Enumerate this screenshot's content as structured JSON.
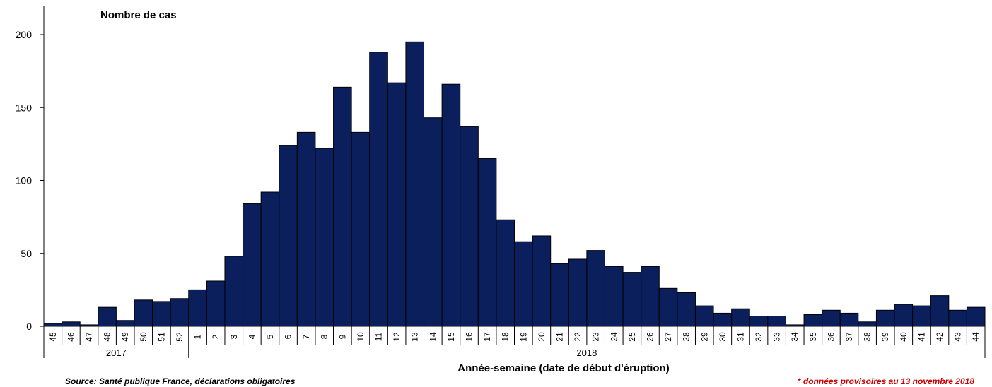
{
  "chart_data": {
    "type": "bar",
    "title": "Nombre de cas",
    "xlabel": "Année-semaine (date de début d'éruption)",
    "ylabel": "",
    "ylim": [
      0,
      200
    ],
    "yticks": [
      0,
      50,
      100,
      150,
      200
    ],
    "grid": false,
    "bar_color": "#0b1f5c",
    "categories": [
      "45",
      "46",
      "47",
      "48",
      "49",
      "50",
      "51",
      "52",
      "1",
      "2",
      "3",
      "4",
      "5",
      "6",
      "7",
      "8",
      "9",
      "10",
      "11",
      "12",
      "13",
      "14",
      "15",
      "16",
      "17",
      "18",
      "19",
      "20",
      "21",
      "22",
      "23",
      "24",
      "25",
      "26",
      "27",
      "28",
      "29",
      "30",
      "31",
      "32",
      "33",
      "34",
      "35",
      "36",
      "37",
      "38",
      "39",
      "40",
      "41",
      "42",
      "43",
      "44"
    ],
    "values": [
      2,
      3,
      1,
      13,
      4,
      18,
      17,
      19,
      25,
      31,
      48,
      84,
      92,
      124,
      133,
      122,
      164,
      133,
      188,
      167,
      195,
      143,
      166,
      137,
      115,
      73,
      58,
      62,
      43,
      46,
      52,
      41,
      37,
      41,
      26,
      23,
      14,
      9,
      12,
      7,
      7,
      1,
      8,
      11,
      9,
      3,
      11,
      15,
      14,
      21,
      11,
      13
    ],
    "years": [
      {
        "label": "2017",
        "start": 0,
        "end": 7
      },
      {
        "label": "2018",
        "start": 8,
        "end": 51
      }
    ]
  },
  "footer": {
    "source": "Source: Santé publique France, déclarations obligatoires",
    "note": "* données provisoires au  13 novembre 2018",
    "note_color": "#cc0000"
  }
}
